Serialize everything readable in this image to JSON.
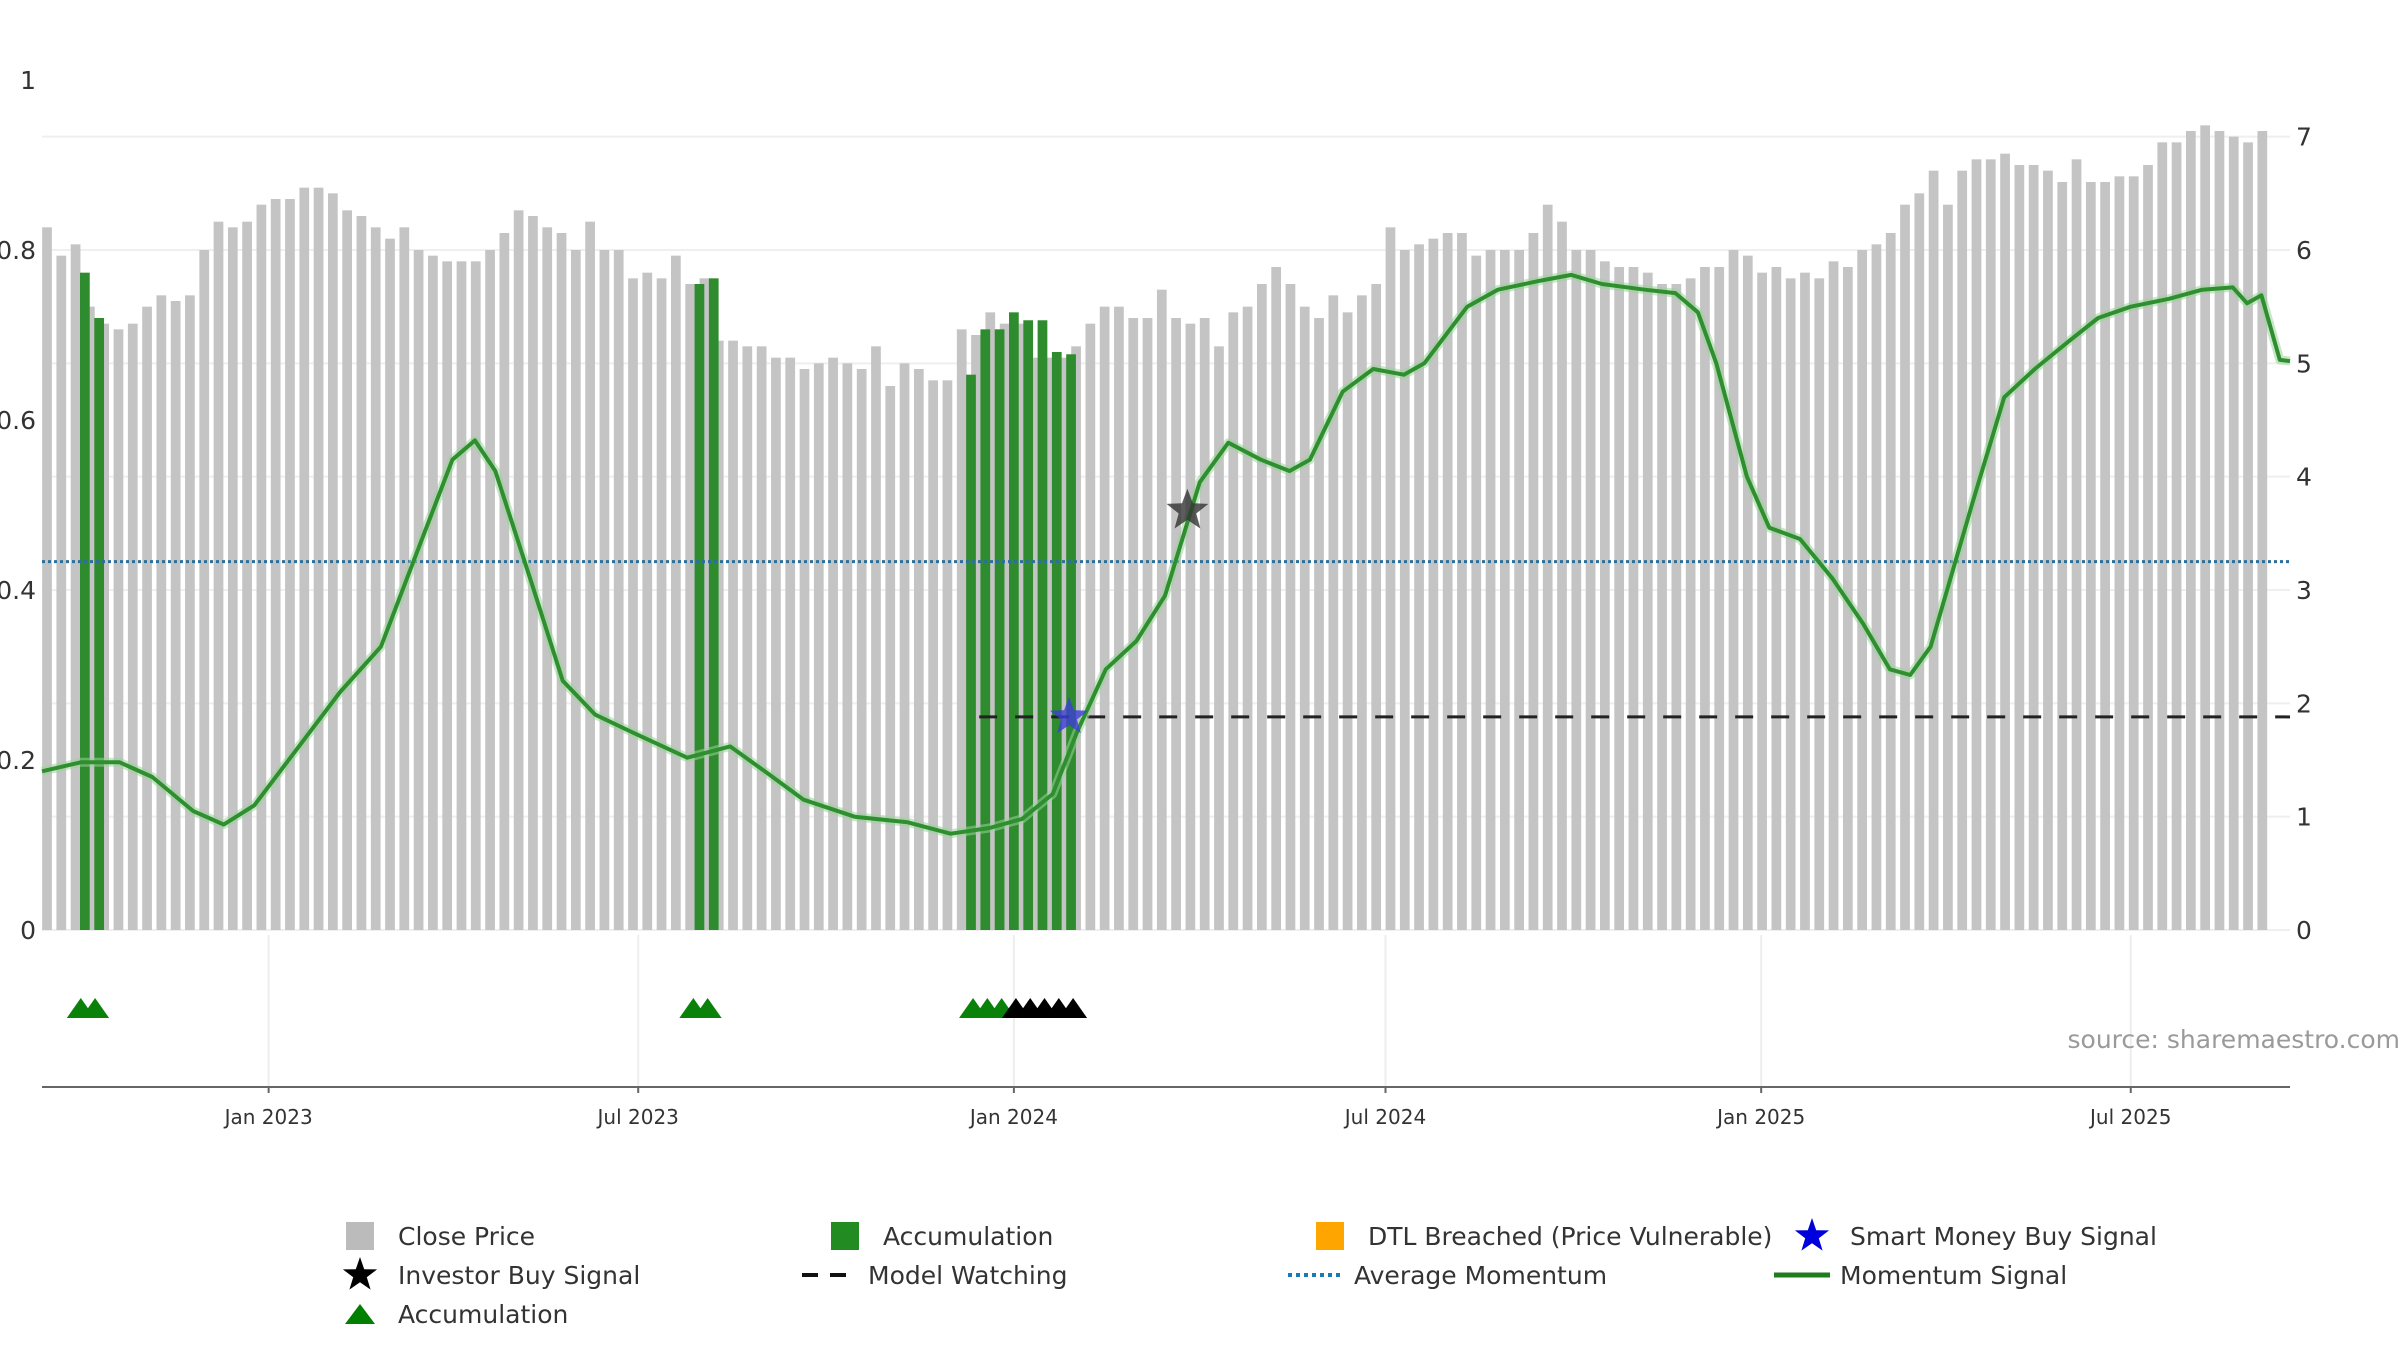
{
  "chart_data": {
    "type": "bar",
    "title": "",
    "xlabel": "",
    "ylabel": "",
    "left_axis": {
      "ylim": [
        0,
        1
      ],
      "ticks": [
        0,
        0.2,
        0.4,
        0.6,
        0.8,
        1
      ],
      "tick_labels": [
        "0",
        "0.2",
        "0.4",
        "0.6",
        "0.8",
        "1"
      ]
    },
    "right_axis": {
      "ylim": [
        0,
        7.5
      ],
      "ticks": [
        0,
        1,
        2,
        3,
        4,
        5,
        6,
        7
      ],
      "tick_labels": [
        "0",
        "1",
        "2",
        "3",
        "4",
        "5",
        "6",
        "7"
      ]
    },
    "x_range": [
      "2022-09-12",
      "2025-09-17"
    ],
    "x_ticks": [
      {
        "date": "2023-01-01",
        "label": "Jan 2023"
      },
      {
        "date": "2023-07-01",
        "label": "Jul 2023"
      },
      {
        "date": "2024-01-01",
        "label": "Jan 2024"
      },
      {
        "date": "2024-07-01",
        "label": "Jul 2024"
      },
      {
        "date": "2025-01-01",
        "label": "Jan 2025"
      },
      {
        "date": "2025-07-01",
        "label": "Jul 2025"
      }
    ],
    "bars_start": "2022-09-12",
    "bar_interval_days": 7,
    "close_price": [
      6.2,
      5.95,
      6.05,
      5.5,
      5.35,
      5.3,
      5.35,
      5.5,
      5.6,
      5.55,
      5.6,
      6.0,
      6.25,
      6.2,
      6.25,
      6.4,
      6.45,
      6.45,
      6.55,
      6.55,
      6.5,
      6.35,
      6.3,
      6.2,
      6.1,
      6.2,
      6.0,
      5.95,
      5.9,
      5.9,
      5.9,
      6.0,
      6.15,
      6.35,
      6.3,
      6.2,
      6.15,
      6.0,
      6.25,
      6.0,
      6.0,
      5.75,
      5.8,
      5.75,
      5.95,
      5.7,
      5.75,
      5.2,
      5.2,
      5.15,
      5.15,
      5.05,
      5.05,
      4.95,
      5.0,
      5.05,
      5.0,
      4.95,
      5.15,
      4.8,
      5.0,
      4.95,
      4.85,
      4.85,
      5.3,
      5.25,
      5.45,
      5.35,
      5.35,
      5.05,
      5.05,
      5.05,
      5.15,
      5.35,
      5.5,
      5.5,
      5.4,
      5.4,
      5.65,
      5.4,
      5.35,
      5.4,
      5.15,
      5.45,
      5.5,
      5.7,
      5.85,
      5.7,
      5.5,
      5.4,
      5.6,
      5.45,
      5.6,
      5.7,
      6.2,
      6.0,
      6.05,
      6.1,
      6.15,
      6.15,
      5.95,
      6.0,
      6.0,
      6.0,
      6.15,
      6.4,
      6.25,
      6.0,
      6.0,
      5.9,
      5.85,
      5.85,
      5.8,
      5.7,
      5.7,
      5.75,
      5.85,
      5.85,
      6.0,
      5.95,
      5.8,
      5.85,
      5.75,
      5.8,
      5.75,
      5.9,
      5.85,
      6.0,
      6.05,
      6.15,
      6.4,
      6.5,
      6.7,
      6.4,
      6.7,
      6.8,
      6.8,
      6.85,
      6.75,
      6.75,
      6.7,
      6.6,
      6.8,
      6.6,
      6.6,
      6.65,
      6.65,
      6.75,
      6.95,
      6.95,
      7.05,
      7.1,
      7.05,
      7.0,
      6.95,
      7.05
    ],
    "series": [
      {
        "name": "Momentum Signal",
        "type": "line",
        "axis": "right",
        "points": [
          [
            "2022-09-12",
            1.4
          ],
          [
            "2022-10-01",
            1.48
          ],
          [
            "2022-10-20",
            1.48
          ],
          [
            "2022-11-05",
            1.35
          ],
          [
            "2022-11-25",
            1.05
          ],
          [
            "2022-12-10",
            0.93
          ],
          [
            "2022-12-25",
            1.1
          ],
          [
            "2023-01-15",
            1.6
          ],
          [
            "2023-02-05",
            2.1
          ],
          [
            "2023-02-25",
            2.5
          ],
          [
            "2023-03-15",
            3.35
          ],
          [
            "2023-04-01",
            4.15
          ],
          [
            "2023-04-12",
            4.32
          ],
          [
            "2023-04-22",
            4.05
          ],
          [
            "2023-05-10",
            3.05
          ],
          [
            "2023-05-25",
            2.2
          ],
          [
            "2023-06-10",
            1.9
          ],
          [
            "2023-07-01",
            1.72
          ],
          [
            "2023-07-25",
            1.52
          ],
          [
            "2023-08-15",
            1.62
          ],
          [
            "2023-09-01",
            1.4
          ],
          [
            "2023-09-20",
            1.15
          ],
          [
            "2023-10-15",
            1.0
          ],
          [
            "2023-11-10",
            0.95
          ],
          [
            "2023-12-01",
            0.85
          ],
          [
            "2023-12-20",
            0.9
          ],
          [
            "2024-01-05",
            0.98
          ],
          [
            "2024-01-20",
            1.2
          ],
          [
            "2024-02-01",
            1.75
          ],
          [
            "2024-02-15",
            2.3
          ],
          [
            "2024-03-01",
            2.55
          ],
          [
            "2024-03-15",
            2.95
          ],
          [
            "2024-04-01",
            3.95
          ],
          [
            "2024-04-15",
            4.3
          ],
          [
            "2024-05-01",
            4.15
          ],
          [
            "2024-05-15",
            4.05
          ],
          [
            "2024-05-25",
            4.15
          ],
          [
            "2024-06-10",
            4.75
          ],
          [
            "2024-06-25",
            4.95
          ],
          [
            "2024-07-10",
            4.9
          ],
          [
            "2024-07-20",
            5.0
          ],
          [
            "2024-08-10",
            5.5
          ],
          [
            "2024-08-25",
            5.65
          ],
          [
            "2024-09-15",
            5.73
          ],
          [
            "2024-09-30",
            5.78
          ],
          [
            "2024-10-15",
            5.7
          ],
          [
            "2024-11-05",
            5.65
          ],
          [
            "2024-11-20",
            5.62
          ],
          [
            "2024-12-01",
            5.45
          ],
          [
            "2024-12-10",
            5.0
          ],
          [
            "2024-12-25",
            4.0
          ],
          [
            "2025-01-05",
            3.55
          ],
          [
            "2025-01-20",
            3.45
          ],
          [
            "2025-02-05",
            3.1
          ],
          [
            "2025-02-20",
            2.7
          ],
          [
            "2025-03-05",
            2.3
          ],
          [
            "2025-03-15",
            2.25
          ],
          [
            "2025-03-25",
            2.5
          ],
          [
            "2025-04-15",
            3.8
          ],
          [
            "2025-04-30",
            4.7
          ],
          [
            "2025-05-15",
            4.95
          ],
          [
            "2025-06-01",
            5.2
          ],
          [
            "2025-06-15",
            5.4
          ],
          [
            "2025-07-01",
            5.5
          ],
          [
            "2025-07-20",
            5.57
          ],
          [
            "2025-08-05",
            5.65
          ],
          [
            "2025-08-20",
            5.67
          ],
          [
            "2025-08-27",
            5.53
          ],
          [
            "2025-09-03",
            5.6
          ],
          [
            "2025-09-12",
            5.03
          ],
          [
            "2025-09-17",
            5.02
          ]
        ]
      },
      {
        "name": "Average Momentum",
        "type": "line",
        "axis": "right",
        "style": "dotted",
        "value": 3.25
      },
      {
        "name": "Model Watching",
        "type": "line",
        "axis": "right",
        "style": "dashed",
        "value": 1.88,
        "from": "2023-12-15",
        "to": "2025-09-17"
      }
    ],
    "accumulation_bars": [
      {
        "date": "2022-10-03",
        "value": 5.8
      },
      {
        "date": "2022-10-10",
        "value": 5.4
      },
      {
        "date": "2023-07-31",
        "value": 5.7
      },
      {
        "date": "2023-08-07",
        "value": 5.75
      },
      {
        "date": "2023-12-11",
        "value": 4.9
      },
      {
        "date": "2023-12-18",
        "value": 5.3
      },
      {
        "date": "2023-12-25",
        "value": 5.3
      },
      {
        "date": "2024-01-01",
        "value": 5.45
      },
      {
        "date": "2024-01-08",
        "value": 5.38
      },
      {
        "date": "2024-01-15",
        "value": 5.38
      },
      {
        "date": "2024-01-22",
        "value": 5.1
      },
      {
        "date": "2024-01-29",
        "value": 5.08
      }
    ],
    "accumulation_markers": [
      {
        "date": "2022-10-01",
        "color": "green"
      },
      {
        "date": "2022-10-08",
        "color": "green"
      },
      {
        "date": "2023-07-28",
        "color": "green"
      },
      {
        "date": "2023-08-04",
        "color": "green"
      },
      {
        "date": "2023-12-12",
        "color": "green"
      },
      {
        "date": "2023-12-19",
        "color": "green"
      },
      {
        "date": "2023-12-26",
        "color": "green"
      },
      {
        "date": "2024-01-02",
        "color": "black"
      },
      {
        "date": "2024-01-09",
        "color": "black"
      },
      {
        "date": "2024-01-16",
        "color": "black"
      },
      {
        "date": "2024-01-23",
        "color": "black"
      },
      {
        "date": "2024-01-30",
        "color": "black"
      }
    ],
    "signals": [
      {
        "name": "Smart Money Buy Signal",
        "date": "2024-01-28",
        "value": 1.88
      },
      {
        "name": "Investor Buy Signal",
        "date": "2024-03-26",
        "value": 3.7
      }
    ],
    "legend": {
      "position": "bottom",
      "items": [
        {
          "label": "Close Price",
          "symbol": "square",
          "color": "#bbbbbb"
        },
        {
          "label": "Accumulation",
          "symbol": "square",
          "color": "#228b22"
        },
        {
          "label": "DTL Breached (Price Vulnerable)",
          "symbol": "square",
          "color": "#ffa500"
        },
        {
          "label": "Smart Money Buy Signal",
          "symbol": "star",
          "color": "#0000dd"
        },
        {
          "label": "Investor Buy Signal",
          "symbol": "star",
          "color": "#000000"
        },
        {
          "label": "Model Watching",
          "symbol": "dash",
          "color": "#111111"
        },
        {
          "label": "Average Momentum",
          "symbol": "dot",
          "color": "#1f77b4"
        },
        {
          "label": "Momentum Signal",
          "symbol": "line",
          "color": "#1e7e1e"
        },
        {
          "label": "Accumulation",
          "symbol": "triangle",
          "color": "#008000"
        }
      ]
    },
    "source_label": "source: sharemaestro.com"
  },
  "colors": {
    "close_price": "#c4c4c4",
    "accumulation": "#2e8b2e",
    "momentum": "#2f8f2f",
    "average": "#2b6f9a",
    "watching": "#222222",
    "smart_money": "#3d3dd6",
    "investor": "#333333",
    "triangle_green": "#0a820a",
    "triangle_black": "#000000"
  }
}
